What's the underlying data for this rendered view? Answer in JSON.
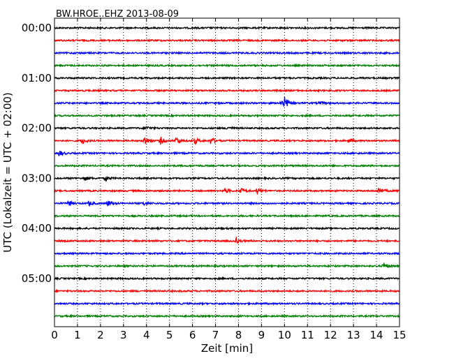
{
  "chart_data": {
    "type": "line",
    "title": "BW.HROE..EHZ 2013-08-09",
    "xlabel": "Zeit  [min]",
    "ylabel": "UTC (Lokalzeit = UTC + 02:00)",
    "xlim": [
      0,
      15
    ],
    "x_ticks": [
      "0",
      "1",
      "2",
      "3",
      "4",
      "5",
      "6",
      "7",
      "8",
      "9",
      "10",
      "11",
      "12",
      "13",
      "14",
      "15"
    ],
    "y_ticks": [
      "00:00",
      "01:00",
      "02:00",
      "03:00",
      "04:00",
      "05:00"
    ],
    "trace_interval_min": 15,
    "colors": [
      "#000000",
      "#ff0000",
      "#0000ff",
      "#008000"
    ],
    "grid": "vertical dotted",
    "traces": [
      {
        "start": "00:00",
        "color": "#000000",
        "events": []
      },
      {
        "start": "00:15",
        "color": "#ff0000",
        "events": []
      },
      {
        "start": "00:30",
        "color": "#0000ff",
        "events": []
      },
      {
        "start": "00:45",
        "color": "#008000",
        "events": []
      },
      {
        "start": "01:00",
        "color": "#000000",
        "events": []
      },
      {
        "start": "01:15",
        "color": "#ff0000",
        "events": []
      },
      {
        "start": "01:30",
        "color": "#0000ff",
        "events": [
          {
            "t": 10.0,
            "amp": 1.0
          },
          {
            "t": 9.8,
            "amp": 0.4
          },
          {
            "t": 11.5,
            "amp": 0.25
          }
        ]
      },
      {
        "start": "01:45",
        "color": "#008000",
        "events": []
      },
      {
        "start": "02:00",
        "color": "#000000",
        "events": [
          {
            "t": 4.0,
            "amp": 0.3
          },
          {
            "t": 7.5,
            "amp": 0.25
          }
        ]
      },
      {
        "start": "02:15",
        "color": "#ff0000",
        "events": [
          {
            "t": 1.2,
            "amp": 0.5
          },
          {
            "t": 3.9,
            "amp": 0.8
          },
          {
            "t": 4.6,
            "amp": 0.6
          },
          {
            "t": 5.3,
            "amp": 0.7
          },
          {
            "t": 6.1,
            "amp": 0.5
          },
          {
            "t": 6.8,
            "amp": 0.6
          },
          {
            "t": 12.8,
            "amp": 0.3
          }
        ]
      },
      {
        "start": "02:30",
        "color": "#0000ff",
        "events": [
          {
            "t": 0.2,
            "amp": 0.5
          }
        ]
      },
      {
        "start": "02:45",
        "color": "#008000",
        "events": []
      },
      {
        "start": "03:00",
        "color": "#000000",
        "events": [
          {
            "t": 1.3,
            "amp": 0.4
          },
          {
            "t": 2.2,
            "amp": 0.4
          }
        ]
      },
      {
        "start": "03:15",
        "color": "#ff0000",
        "events": [
          {
            "t": 7.4,
            "amp": 0.4
          },
          {
            "t": 8.1,
            "amp": 0.5
          },
          {
            "t": 8.8,
            "amp": 0.4
          },
          {
            "t": 14.1,
            "amp": 0.5
          }
        ]
      },
      {
        "start": "03:30",
        "color": "#0000ff",
        "events": [
          {
            "t": 0.6,
            "amp": 0.5
          },
          {
            "t": 1.5,
            "amp": 0.4
          },
          {
            "t": 2.3,
            "amp": 0.5
          },
          {
            "t": 3.9,
            "amp": 0.3
          }
        ]
      },
      {
        "start": "03:45",
        "color": "#008000",
        "events": []
      },
      {
        "start": "04:00",
        "color": "#000000",
        "events": []
      },
      {
        "start": "04:15",
        "color": "#ff0000",
        "events": [
          {
            "t": 7.9,
            "amp": 0.4
          }
        ]
      },
      {
        "start": "04:30",
        "color": "#0000ff",
        "events": []
      },
      {
        "start": "04:45",
        "color": "#008000",
        "events": [
          {
            "t": 14.3,
            "amp": 0.55
          }
        ]
      },
      {
        "start": "05:00",
        "color": "#000000",
        "events": []
      },
      {
        "start": "05:15",
        "color": "#ff0000",
        "events": []
      },
      {
        "start": "05:30",
        "color": "#0000ff",
        "events": []
      },
      {
        "start": "05:45",
        "color": "#008000",
        "events": []
      }
    ]
  }
}
